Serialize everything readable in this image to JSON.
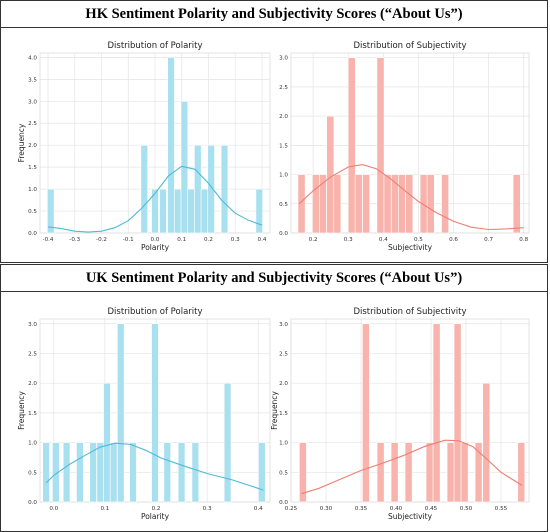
{
  "sections": [
    {
      "title": "HK Sentiment Polarity and Subjectivity Scores (“About Us”)"
    },
    {
      "title": "UK Sentiment Polarity and Subjectivity Scores (“About Us”)"
    }
  ],
  "colors": {
    "polarity_bar": "#a8e0f0",
    "polarity_line": "#4fbad6",
    "subjectivity_bar": "#f8b4ac",
    "subjectivity_line": "#ee7f73",
    "grid": "#e4e4e4"
  },
  "chart_data": [
    {
      "type": "bar",
      "title": "Distribution of Polarity",
      "xlabel": "Polarity",
      "ylabel": "Frequency",
      "xlim": [
        -0.43,
        0.43
      ],
      "ylim": [
        0,
        4.1
      ],
      "xticks": [
        -0.4,
        -0.3,
        -0.2,
        -0.1,
        0.0,
        0.1,
        0.2,
        0.3,
        0.4
      ],
      "xtick_labels": [
        "-0.4",
        "-0.3",
        "-0.2",
        "-0.1",
        "0.0",
        "0.1",
        "0.2",
        "0.3",
        "0.4"
      ],
      "yticks": [
        0,
        0.5,
        1,
        1.5,
        2,
        2.5,
        3,
        3.5,
        4
      ],
      "ytick_labels": [
        "0.0",
        "0.5",
        "1.0",
        "1.5",
        "2.0",
        "2.5",
        "3.0",
        "3.5",
        "4.0"
      ],
      "bin_width": 0.0255,
      "bins": [
        [
          -0.39,
          1
        ],
        [
          -0.04,
          2
        ],
        [
          0.0,
          1
        ],
        [
          0.03,
          1
        ],
        [
          0.06,
          4
        ],
        [
          0.085,
          1
        ],
        [
          0.11,
          3
        ],
        [
          0.135,
          1
        ],
        [
          0.16,
          2
        ],
        [
          0.185,
          1
        ],
        [
          0.21,
          2
        ],
        [
          0.26,
          2
        ],
        [
          0.39,
          1
        ]
      ],
      "kde": [
        [
          -0.4,
          0.14
        ],
        [
          -0.35,
          0.1
        ],
        [
          -0.3,
          0.04
        ],
        [
          -0.25,
          0.02
        ],
        [
          -0.2,
          0.04
        ],
        [
          -0.15,
          0.12
        ],
        [
          -0.1,
          0.28
        ],
        [
          -0.05,
          0.56
        ],
        [
          0.0,
          0.9
        ],
        [
          0.05,
          1.3
        ],
        [
          0.1,
          1.52
        ],
        [
          0.15,
          1.45
        ],
        [
          0.2,
          1.13
        ],
        [
          0.25,
          0.74
        ],
        [
          0.3,
          0.45
        ],
        [
          0.35,
          0.29
        ],
        [
          0.4,
          0.18
        ]
      ],
      "grid": true,
      "palette": "polarity"
    },
    {
      "type": "bar",
      "title": "Distribution of Subjectivity",
      "xlabel": "Subjectivity",
      "ylabel": "",
      "xlim": [
        0.137,
        0.815
      ],
      "ylim": [
        0,
        3.08
      ],
      "xticks": [
        0.2,
        0.3,
        0.4,
        0.5,
        0.6,
        0.7,
        0.8
      ],
      "xtick_labels": [
        "0.2",
        "0.3",
        "0.4",
        "0.5",
        "0.6",
        "0.7",
        "0.8"
      ],
      "yticks": [
        0,
        0.5,
        1,
        1.5,
        2,
        2.5,
        3
      ],
      "ytick_labels": [
        "0.0",
        "0.5",
        "1.0",
        "1.5",
        "2.0",
        "2.5",
        "3.0"
      ],
      "bin_width": 0.0205,
      "bins": [
        [
          0.167,
          1
        ],
        [
          0.208,
          1
        ],
        [
          0.228,
          1
        ],
        [
          0.249,
          2
        ],
        [
          0.269,
          1
        ],
        [
          0.31,
          3
        ],
        [
          0.33,
          1
        ],
        [
          0.351,
          1
        ],
        [
          0.392,
          3
        ],
        [
          0.412,
          1
        ],
        [
          0.433,
          1
        ],
        [
          0.453,
          1
        ],
        [
          0.474,
          1
        ],
        [
          0.515,
          1
        ],
        [
          0.535,
          1
        ],
        [
          0.576,
          1
        ],
        [
          0.78,
          1
        ]
      ],
      "kde": [
        [
          0.16,
          0.5
        ],
        [
          0.2,
          0.72
        ],
        [
          0.25,
          0.96
        ],
        [
          0.3,
          1.13
        ],
        [
          0.34,
          1.17
        ],
        [
          0.38,
          1.1
        ],
        [
          0.42,
          0.93
        ],
        [
          0.46,
          0.73
        ],
        [
          0.5,
          0.54
        ],
        [
          0.55,
          0.35
        ],
        [
          0.6,
          0.2
        ],
        [
          0.65,
          0.1
        ],
        [
          0.7,
          0.06
        ],
        [
          0.75,
          0.07
        ],
        [
          0.8,
          0.09
        ]
      ],
      "grid": true,
      "palette": "subjectivity"
    },
    {
      "type": "bar",
      "title": "Distribution of Polarity",
      "xlabel": "Polarity",
      "ylabel": "Frequency",
      "xlim": [
        -0.027,
        0.423
      ],
      "ylim": [
        0,
        3.08
      ],
      "xticks": [
        0.0,
        0.1,
        0.2,
        0.3,
        0.4
      ],
      "xtick_labels": [
        "0.0",
        "0.1",
        "0.2",
        "0.3",
        "0.4"
      ],
      "yticks": [
        0,
        0.5,
        1,
        1.5,
        2,
        2.5,
        3
      ],
      "ytick_labels": [
        "0.0",
        "0.5",
        "1.0",
        "1.5",
        "2.0",
        "2.5",
        "3.0"
      ],
      "bin_width": 0.0134,
      "bins": [
        [
          -0.015,
          1
        ],
        [
          0.004,
          1
        ],
        [
          0.025,
          1
        ],
        [
          0.051,
          1
        ],
        [
          0.077,
          1
        ],
        [
          0.091,
          1
        ],
        [
          0.104,
          2
        ],
        [
          0.117,
          1
        ],
        [
          0.131,
          3
        ],
        [
          0.155,
          1
        ],
        [
          0.198,
          3
        ],
        [
          0.222,
          1
        ],
        [
          0.25,
          1
        ],
        [
          0.277,
          1
        ],
        [
          0.34,
          2
        ],
        [
          0.407,
          1
        ]
      ],
      "kde": [
        [
          -0.015,
          0.32
        ],
        [
          0.0,
          0.45
        ],
        [
          0.03,
          0.63
        ],
        [
          0.06,
          0.78
        ],
        [
          0.09,
          0.92
        ],
        [
          0.12,
          0.99
        ],
        [
          0.15,
          0.97
        ],
        [
          0.18,
          0.87
        ],
        [
          0.21,
          0.74
        ],
        [
          0.25,
          0.62
        ],
        [
          0.3,
          0.48
        ],
        [
          0.35,
          0.37
        ],
        [
          0.41,
          0.2
        ]
      ],
      "grid": true,
      "palette": "polarity"
    },
    {
      "type": "bar",
      "title": "Distribution of Subjectivity",
      "xlabel": "Subjectivity",
      "ylabel": "Frequency",
      "xlim": [
        0.25,
        0.59
      ],
      "ylim": [
        0,
        3.08
      ],
      "xticks": [
        0.25,
        0.3,
        0.35,
        0.4,
        0.45,
        0.5,
        0.55
      ],
      "xtick_labels": [
        "0.25",
        "0.30",
        "0.35",
        "0.40",
        "0.45",
        "0.50",
        "0.55"
      ],
      "yticks": [
        0,
        0.5,
        1,
        1.5,
        2,
        2.5,
        3
      ],
      "ytick_labels": [
        "0.0",
        "0.5",
        "1.0",
        "1.5",
        "2.0",
        "2.5",
        "3.0"
      ],
      "bin_width": 0.0101,
      "bins": [
        [
          0.267,
          1
        ],
        [
          0.357,
          3
        ],
        [
          0.378,
          1
        ],
        [
          0.398,
          1
        ],
        [
          0.418,
          1
        ],
        [
          0.448,
          1
        ],
        [
          0.458,
          3
        ],
        [
          0.478,
          1
        ],
        [
          0.488,
          3
        ],
        [
          0.498,
          1
        ],
        [
          0.518,
          1
        ],
        [
          0.529,
          2
        ],
        [
          0.579,
          1
        ]
      ],
      "kde": [
        [
          0.265,
          0.14
        ],
        [
          0.29,
          0.23
        ],
        [
          0.32,
          0.38
        ],
        [
          0.35,
          0.53
        ],
        [
          0.38,
          0.65
        ],
        [
          0.41,
          0.78
        ],
        [
          0.44,
          0.93
        ],
        [
          0.47,
          1.04
        ],
        [
          0.49,
          1.03
        ],
        [
          0.51,
          0.93
        ],
        [
          0.53,
          0.72
        ],
        [
          0.55,
          0.5
        ],
        [
          0.58,
          0.28
        ]
      ],
      "grid": true,
      "palette": "subjectivity"
    }
  ]
}
